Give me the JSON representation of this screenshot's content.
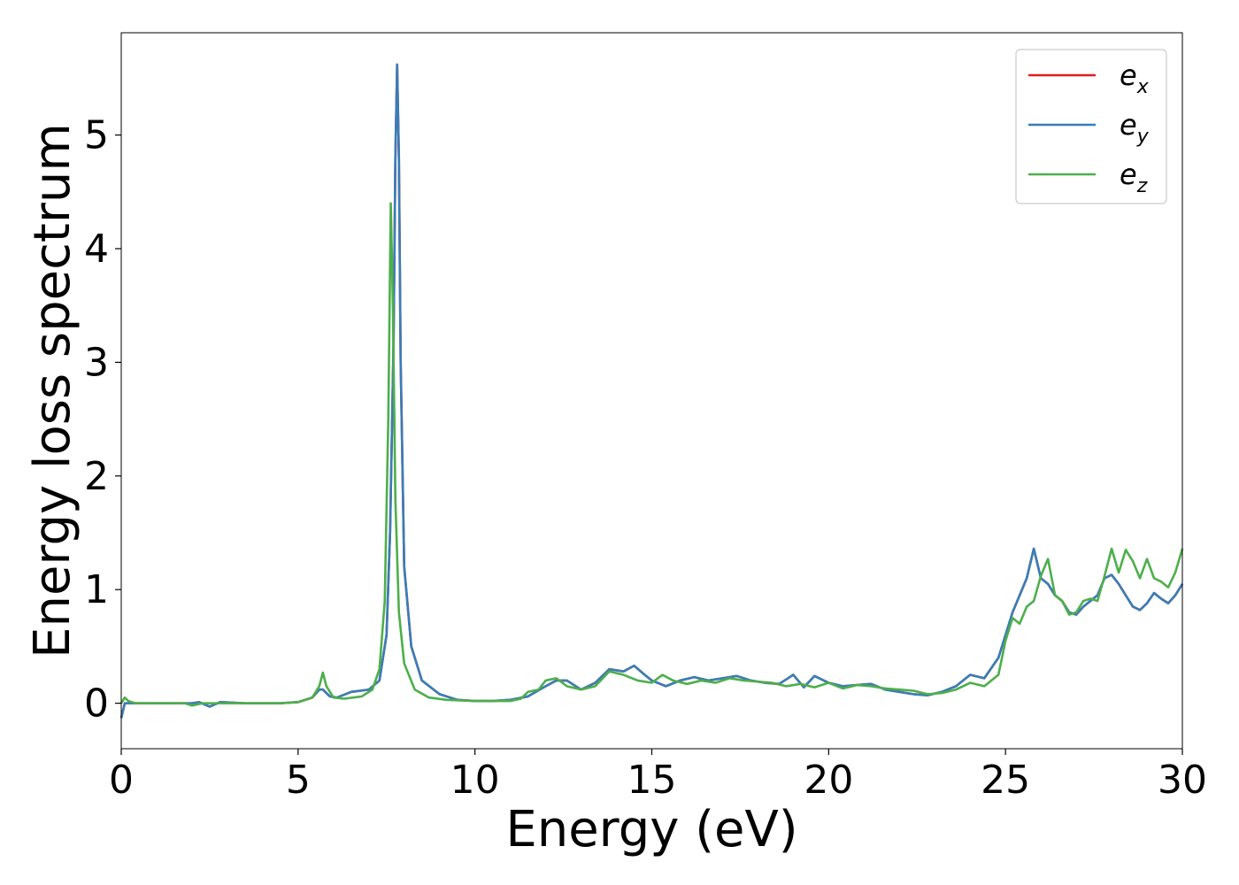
{
  "chart_data": {
    "type": "line",
    "title": "",
    "xlabel": "Energy (eV)",
    "ylabel": "Energy loss spectrum",
    "xlim": [
      0,
      30
    ],
    "ylim": [
      -0.4,
      5.9
    ],
    "xticks": [
      "0",
      "5",
      "10",
      "15",
      "20",
      "25",
      "30"
    ],
    "yticks": [
      "0",
      "1",
      "2",
      "3",
      "4",
      "5"
    ],
    "grid": false,
    "legend_position": "top-right",
    "series": [
      {
        "name": "e_x",
        "legend_base": "e",
        "legend_sub": "x",
        "color": "#e41a1c",
        "x": [
          0,
          0.1,
          0.2,
          0.4,
          1.0,
          2.0,
          2.2,
          2.5,
          2.8,
          3.5,
          4.5,
          5.0,
          5.4,
          5.6,
          5.7,
          5.9,
          6.1,
          6.5,
          7.0,
          7.3,
          7.5,
          7.6,
          7.7,
          7.75,
          7.8,
          7.85,
          7.9,
          8.0,
          8.2,
          8.5,
          9.0,
          9.5,
          10.0,
          10.5,
          11.0,
          11.5,
          12.0,
          12.3,
          12.6,
          13.0,
          13.4,
          13.8,
          14.2,
          14.5,
          14.8,
          15.0,
          15.4,
          15.8,
          16.2,
          16.6,
          17.0,
          17.4,
          17.8,
          18.2,
          18.6,
          19.0,
          19.3,
          19.6,
          20.0,
          20.4,
          20.8,
          21.2,
          21.6,
          22.0,
          22.4,
          22.8,
          23.2,
          23.6,
          24.0,
          24.4,
          24.8,
          25.0,
          25.2,
          25.4,
          25.6,
          25.8,
          26.0,
          26.2,
          26.4,
          26.6,
          26.8,
          27.0,
          27.2,
          27.4,
          27.6,
          27.8,
          28.0,
          28.2,
          28.4,
          28.6,
          28.8,
          29.0,
          29.2,
          29.4,
          29.6,
          29.8,
          30.0
        ],
        "y": [
          -0.13,
          0.0,
          0.0,
          0.0,
          0.0,
          0.0,
          0.01,
          -0.03,
          0.01,
          0.0,
          0.0,
          0.01,
          0.05,
          0.12,
          0.12,
          0.06,
          0.05,
          0.1,
          0.12,
          0.2,
          0.6,
          1.5,
          3.2,
          4.8,
          5.62,
          4.8,
          3.0,
          1.2,
          0.5,
          0.2,
          0.08,
          0.03,
          0.02,
          0.02,
          0.03,
          0.06,
          0.15,
          0.2,
          0.2,
          0.12,
          0.18,
          0.3,
          0.28,
          0.33,
          0.25,
          0.2,
          0.15,
          0.2,
          0.23,
          0.2,
          0.22,
          0.24,
          0.2,
          0.18,
          0.17,
          0.25,
          0.14,
          0.24,
          0.18,
          0.15,
          0.16,
          0.17,
          0.12,
          0.1,
          0.08,
          0.07,
          0.1,
          0.15,
          0.25,
          0.22,
          0.4,
          0.6,
          0.8,
          0.95,
          1.1,
          1.36,
          1.1,
          1.05,
          0.95,
          0.9,
          0.8,
          0.78,
          0.85,
          0.9,
          0.95,
          1.1,
          1.13,
          1.05,
          0.95,
          0.85,
          0.82,
          0.88,
          0.97,
          0.92,
          0.88,
          0.95,
          1.05
        ]
      },
      {
        "name": "e_y",
        "legend_base": "e",
        "legend_sub": "y",
        "color": "#377eb8",
        "x": [
          0,
          0.1,
          0.2,
          0.4,
          1.0,
          2.0,
          2.2,
          2.5,
          2.8,
          3.5,
          4.5,
          5.0,
          5.4,
          5.6,
          5.7,
          5.9,
          6.1,
          6.5,
          7.0,
          7.3,
          7.5,
          7.6,
          7.7,
          7.75,
          7.8,
          7.85,
          7.9,
          8.0,
          8.2,
          8.5,
          9.0,
          9.5,
          10.0,
          10.5,
          11.0,
          11.5,
          12.0,
          12.3,
          12.6,
          13.0,
          13.4,
          13.8,
          14.2,
          14.5,
          14.8,
          15.0,
          15.4,
          15.8,
          16.2,
          16.6,
          17.0,
          17.4,
          17.8,
          18.2,
          18.6,
          19.0,
          19.3,
          19.6,
          20.0,
          20.4,
          20.8,
          21.2,
          21.6,
          22.0,
          22.4,
          22.8,
          23.2,
          23.6,
          24.0,
          24.4,
          24.8,
          25.0,
          25.2,
          25.4,
          25.6,
          25.8,
          26.0,
          26.2,
          26.4,
          26.6,
          26.8,
          27.0,
          27.2,
          27.4,
          27.6,
          27.8,
          28.0,
          28.2,
          28.4,
          28.6,
          28.8,
          29.0,
          29.2,
          29.4,
          29.6,
          29.8,
          30.0
        ],
        "y": [
          -0.13,
          0.0,
          0.0,
          0.0,
          0.0,
          0.0,
          0.01,
          -0.03,
          0.01,
          0.0,
          0.0,
          0.01,
          0.05,
          0.12,
          0.12,
          0.06,
          0.05,
          0.1,
          0.12,
          0.2,
          0.6,
          1.5,
          3.2,
          4.8,
          5.62,
          4.8,
          3.0,
          1.2,
          0.5,
          0.2,
          0.08,
          0.03,
          0.02,
          0.02,
          0.03,
          0.06,
          0.15,
          0.2,
          0.2,
          0.12,
          0.18,
          0.3,
          0.28,
          0.33,
          0.25,
          0.2,
          0.15,
          0.2,
          0.23,
          0.2,
          0.22,
          0.24,
          0.2,
          0.18,
          0.17,
          0.25,
          0.14,
          0.24,
          0.18,
          0.15,
          0.16,
          0.17,
          0.12,
          0.1,
          0.08,
          0.07,
          0.1,
          0.15,
          0.25,
          0.22,
          0.4,
          0.6,
          0.8,
          0.95,
          1.1,
          1.36,
          1.1,
          1.05,
          0.95,
          0.9,
          0.8,
          0.78,
          0.85,
          0.9,
          0.95,
          1.1,
          1.13,
          1.05,
          0.95,
          0.85,
          0.82,
          0.88,
          0.97,
          0.92,
          0.88,
          0.95,
          1.05
        ]
      },
      {
        "name": "e_z",
        "legend_base": "e",
        "legend_sub": "z",
        "color": "#4daf4a",
        "x": [
          0,
          0.1,
          0.2,
          0.4,
          1.0,
          1.8,
          2.0,
          2.3,
          2.8,
          3.5,
          4.5,
          5.0,
          5.4,
          5.6,
          5.7,
          5.8,
          6.0,
          6.3,
          6.8,
          7.1,
          7.3,
          7.45,
          7.55,
          7.62,
          7.68,
          7.75,
          7.85,
          8.0,
          8.3,
          8.7,
          9.2,
          10.0,
          10.5,
          11.0,
          11.3,
          11.5,
          11.8,
          12.0,
          12.3,
          12.6,
          13.0,
          13.4,
          13.8,
          14.2,
          14.6,
          15.0,
          15.3,
          15.6,
          16.0,
          16.4,
          16.8,
          17.2,
          17.6,
          18.0,
          18.4,
          18.8,
          19.2,
          19.6,
          20.0,
          20.4,
          20.8,
          21.2,
          21.6,
          22.0,
          22.4,
          22.8,
          23.2,
          23.6,
          24.0,
          24.4,
          24.8,
          25.0,
          25.2,
          25.4,
          25.6,
          25.8,
          26.0,
          26.2,
          26.4,
          26.6,
          26.8,
          27.0,
          27.2,
          27.4,
          27.6,
          27.8,
          28.0,
          28.2,
          28.4,
          28.6,
          28.8,
          29.0,
          29.2,
          29.4,
          29.6,
          29.8,
          30.0
        ],
        "y": [
          0.0,
          0.05,
          0.02,
          0.0,
          0.0,
          0.0,
          -0.02,
          0.0,
          0.0,
          0.0,
          0.0,
          0.01,
          0.05,
          0.15,
          0.27,
          0.15,
          0.05,
          0.04,
          0.06,
          0.12,
          0.3,
          0.9,
          2.5,
          4.4,
          3.5,
          1.8,
          0.8,
          0.35,
          0.12,
          0.05,
          0.03,
          0.02,
          0.02,
          0.02,
          0.04,
          0.1,
          0.12,
          0.2,
          0.22,
          0.15,
          0.12,
          0.15,
          0.28,
          0.25,
          0.2,
          0.18,
          0.25,
          0.2,
          0.17,
          0.2,
          0.18,
          0.22,
          0.2,
          0.19,
          0.18,
          0.15,
          0.17,
          0.14,
          0.18,
          0.13,
          0.16,
          0.15,
          0.13,
          0.12,
          0.11,
          0.08,
          0.09,
          0.12,
          0.18,
          0.15,
          0.25,
          0.55,
          0.75,
          0.7,
          0.85,
          0.9,
          1.12,
          1.27,
          0.95,
          0.9,
          0.78,
          0.8,
          0.9,
          0.92,
          0.9,
          1.12,
          1.36,
          1.15,
          1.35,
          1.25,
          1.1,
          1.27,
          1.1,
          1.07,
          1.02,
          1.15,
          1.36
        ]
      }
    ]
  }
}
